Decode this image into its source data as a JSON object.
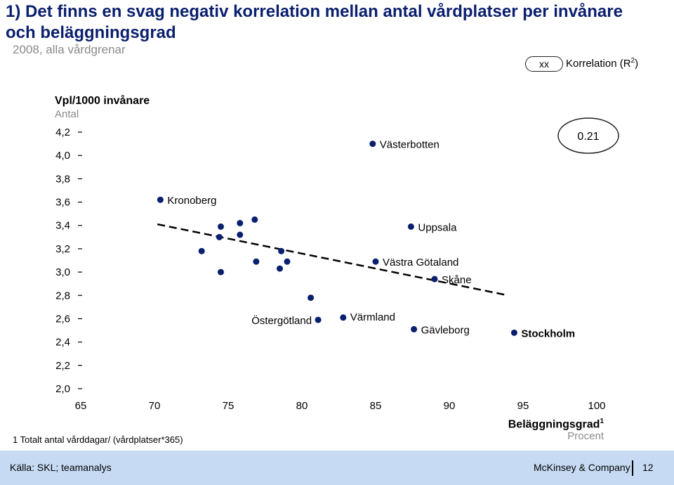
{
  "header": {
    "title": "1) Det finns en svag negativ korrelation mellan antal vårdplatser per invånare och beläggningsgrad",
    "subtitle": "2008, alla vårdgrenar"
  },
  "legend": {
    "pill_text": "xx",
    "label_text": "Korrelation (R",
    "label_sup": "2",
    "label_end": ")"
  },
  "chart_data": {
    "type": "scatter",
    "ylabel": "Vpl/1000 invånare",
    "yunit": "Antal",
    "xlabel": "Beläggningsgrad",
    "xlabel_sup": "1",
    "xunit": "Procent",
    "xlim": [
      65,
      100
    ],
    "ylim": [
      2.0,
      4.2
    ],
    "x_ticks": [
      "65",
      "70",
      "75",
      "80",
      "85",
      "90",
      "95",
      "100"
    ],
    "y_ticks": [
      "2,0",
      "2,2",
      "2,4",
      "2,6",
      "2,8",
      "3,0",
      "3,2",
      "3,4",
      "3,6",
      "3,8",
      "4,0",
      "4,2"
    ],
    "r2": "0.21",
    "points": [
      {
        "x": 70.4,
        "y": 3.62,
        "label": "Kronoberg"
      },
      {
        "x": 73.2,
        "y": 3.18,
        "label": ""
      },
      {
        "x": 74.4,
        "y": 3.3,
        "label": ""
      },
      {
        "x": 74.5,
        "y": 3.39,
        "label": ""
      },
      {
        "x": 74.5,
        "y": 3.0,
        "label": ""
      },
      {
        "x": 75.8,
        "y": 3.42,
        "label": ""
      },
      {
        "x": 75.8,
        "y": 3.32,
        "label": ""
      },
      {
        "x": 76.8,
        "y": 3.45,
        "label": ""
      },
      {
        "x": 76.9,
        "y": 3.09,
        "label": ""
      },
      {
        "x": 78.5,
        "y": 3.03,
        "label": ""
      },
      {
        "x": 78.6,
        "y": 3.18,
        "label": ""
      },
      {
        "x": 79.0,
        "y": 3.09,
        "label": ""
      },
      {
        "x": 80.6,
        "y": 2.78,
        "label": ""
      },
      {
        "x": 81.1,
        "y": 2.59,
        "label": "Östergötland"
      },
      {
        "x": 82.8,
        "y": 2.61,
        "label": "Värmland"
      },
      {
        "x": 84.8,
        "y": 4.1,
        "label": "Västerbotten"
      },
      {
        "x": 85.0,
        "y": 3.09,
        "label": "Västra Götaland"
      },
      {
        "x": 87.4,
        "y": 3.39,
        "label": "Uppsala"
      },
      {
        "x": 87.6,
        "y": 2.51,
        "label": "Gävleborg"
      },
      {
        "x": 89.0,
        "y": 2.94,
        "label": "Skåne"
      },
      {
        "x": 94.4,
        "y": 2.48,
        "label": "Stockholm"
      }
    ],
    "trendline": {
      "x": [
        70.2,
        94.0
      ],
      "y": [
        3.41,
        2.8
      ]
    }
  },
  "footnote": "1 Totalt antal vårddagar/ (vårdplatser*365)",
  "footer": {
    "source": "Källa: SKL; teamanalys",
    "brand": "McKinsey & Company",
    "page": "12"
  },
  "colors": {
    "title": "#0a1f6e",
    "point": "#0a1f6e",
    "footer_bg": "#c6dbf3"
  }
}
